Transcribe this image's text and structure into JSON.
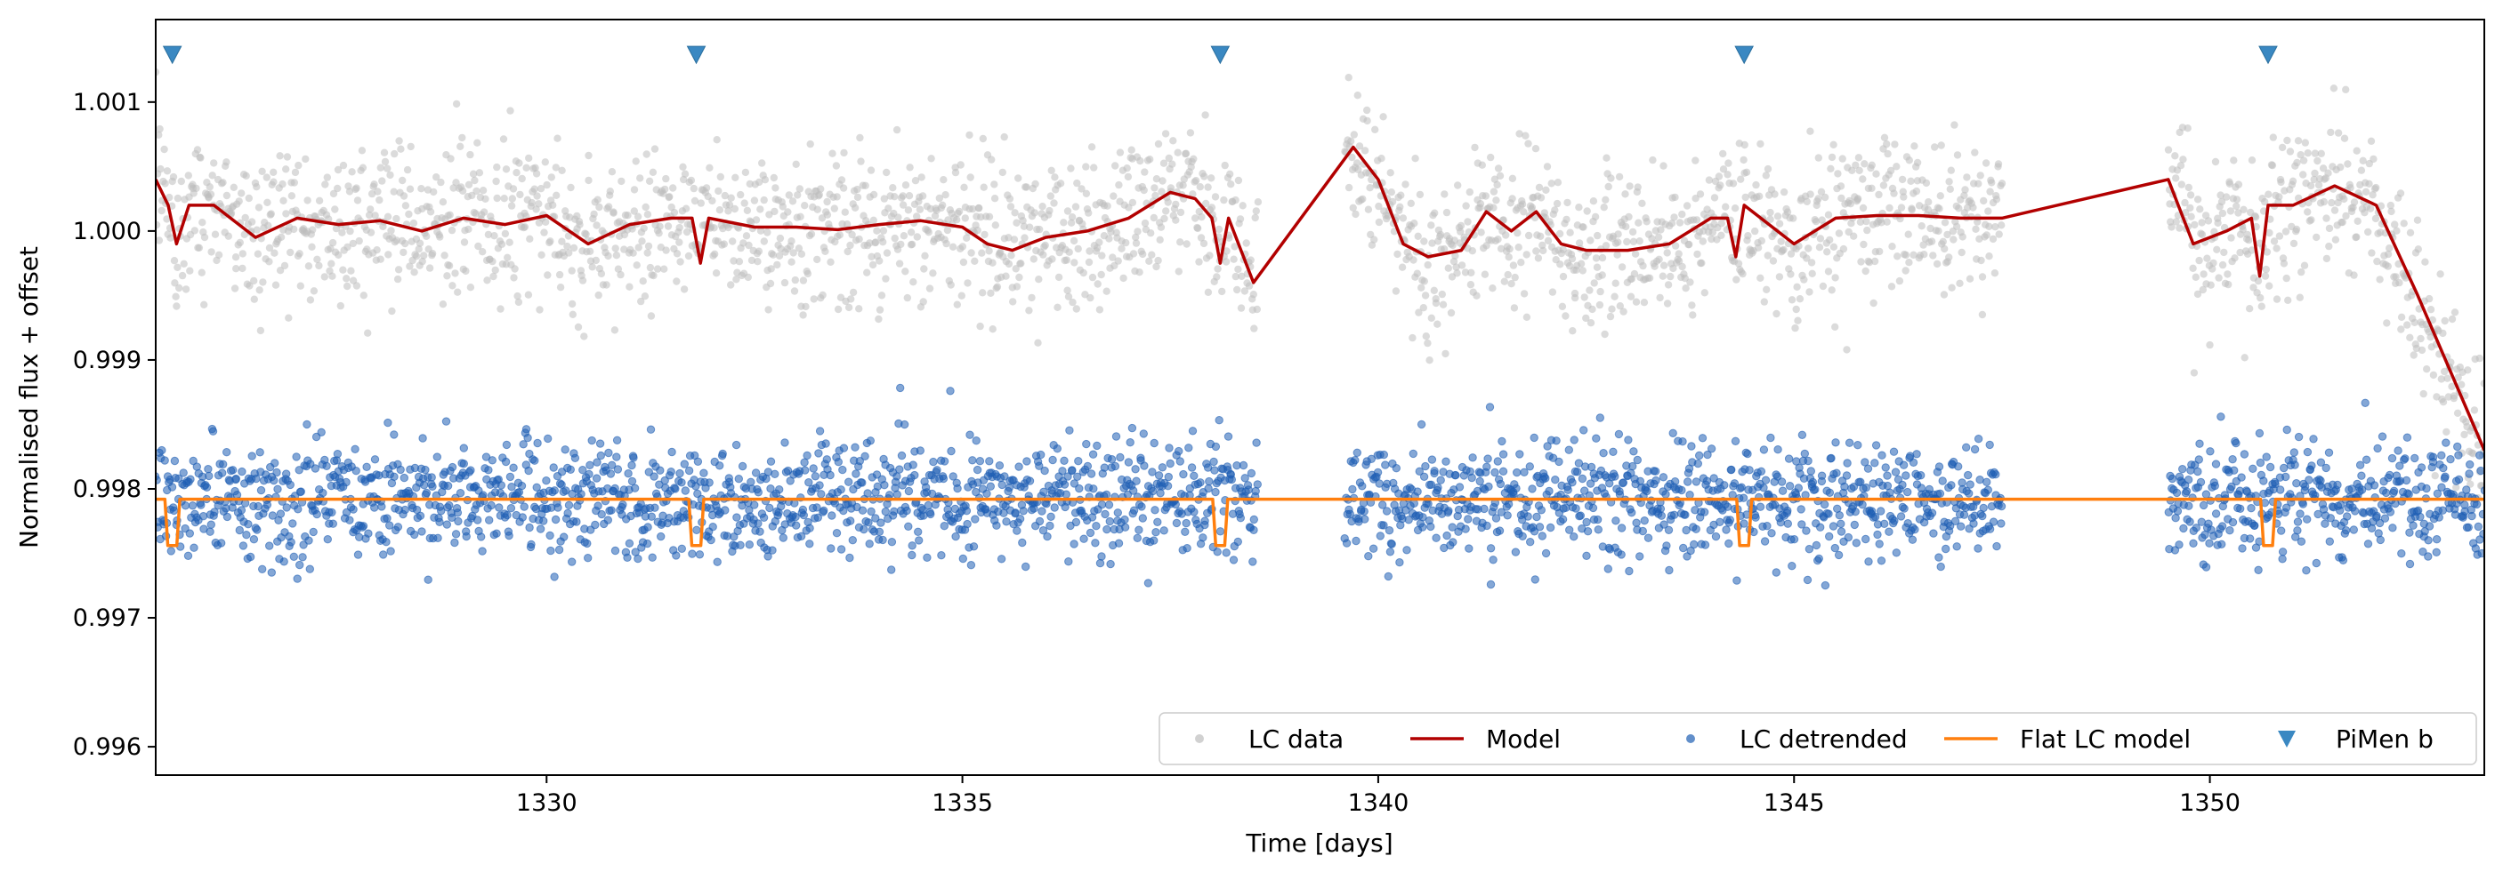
{
  "chart_data": {
    "type": "scatter",
    "xlabel": "Time [days]",
    "ylabel": "Normalised flux + offset",
    "xlim": [
      1325.3,
      1353.3
    ],
    "ylim": [
      0.99578,
      0.99164
    ],
    "x_ticks": [
      1330,
      1335,
      1340,
      1345,
      1350
    ],
    "x_tick_labels": [
      "1330",
      "1335",
      "1340",
      "1345",
      "1350"
    ],
    "y_ticks": [
      0.997,
      0.998,
      0.999,
      1.0,
      1.001
    ],
    "y_tick_labels": [
      "0.997",
      "0.998",
      "0.999",
      "1.000",
      "1.001"
    ],
    "y_axis_bottom_label": "0.996",
    "legend_position": "lower-right",
    "colors": {
      "lc_data": "#bdbdbd",
      "model": "#b20000",
      "lc_detrended": "#1f5fb4",
      "flat_model": "#ff7f0e",
      "transit_marker": "#3a88c2"
    },
    "segments": [
      [
        1325.3,
        1338.55
      ],
      [
        1339.6,
        1347.5
      ],
      [
        1349.5,
        1353.3
      ]
    ],
    "series": [
      {
        "name": "LC data",
        "kind": "scatter",
        "note_level": 1.0,
        "scatter_sigma": 0.0003
      },
      {
        "name": "Model",
        "kind": "line",
        "x": [
          1325.3,
          1325.45,
          1325.55,
          1325.7,
          1326.0,
          1326.5,
          1327.0,
          1327.5,
          1328.0,
          1328.5,
          1329.0,
          1329.5,
          1330.0,
          1330.5,
          1331.0,
          1331.5,
          1331.75,
          1331.85,
          1331.95,
          1332.5,
          1333.0,
          1333.5,
          1334.0,
          1334.5,
          1335.0,
          1335.3,
          1335.6,
          1336.0,
          1336.5,
          1337.0,
          1337.5,
          1337.8,
          1338.0,
          1338.1,
          1338.2,
          1338.5,
          1339.7,
          1340.0,
          1340.3,
          1340.6,
          1341.0,
          1341.3,
          1341.6,
          1341.9,
          1342.2,
          1342.5,
          1343.0,
          1343.5,
          1344.0,
          1344.2,
          1344.3,
          1344.4,
          1344.6,
          1345.0,
          1345.5,
          1346.0,
          1346.5,
          1347.0,
          1347.5,
          1349.5,
          1349.8,
          1350.2,
          1350.5,
          1350.6,
          1350.7,
          1351.0,
          1351.5,
          1352.0,
          1352.5,
          1353.0,
          1353.3
        ],
        "y": [
          1.0004,
          1.0002,
          0.9999,
          1.0002,
          1.0002,
          0.99995,
          1.0001,
          1.00005,
          1.00008,
          1.0,
          1.0001,
          1.00005,
          1.00012,
          0.9999,
          1.00005,
          1.0001,
          1.0001,
          0.99975,
          1.0001,
          1.00003,
          1.00003,
          1.00001,
          1.00005,
          1.00008,
          1.00003,
          0.9999,
          0.99985,
          0.99995,
          1.0,
          1.0001,
          1.0003,
          1.00025,
          1.0001,
          0.99975,
          1.0001,
          0.9996,
          1.00065,
          1.0004,
          0.9999,
          0.9998,
          0.99985,
          1.00015,
          1.0,
          1.00015,
          0.9999,
          0.99985,
          0.99985,
          0.9999,
          1.0001,
          1.0001,
          0.9998,
          1.0002,
          1.0001,
          0.9999,
          1.0001,
          1.00012,
          1.00012,
          1.0001,
          1.0001,
          1.0004,
          0.9999,
          1.0,
          1.0001,
          0.99965,
          1.0002,
          1.0002,
          1.00035,
          1.0002,
          0.9995,
          0.99875,
          0.9983
        ]
      },
      {
        "name": "LC detrended",
        "kind": "scatter",
        "note_level": 0.99792,
        "scatter_sigma": 0.00022
      },
      {
        "name": "Flat LC model",
        "kind": "line",
        "baseline": 0.99792,
        "transit_depth": 0.00036,
        "transit_width_days": 0.18
      },
      {
        "name": "PiMen b",
        "kind": "marker",
        "x": [
          1325.5,
          1331.8,
          1338.1,
          1344.4,
          1350.7
        ],
        "y_level": 1.00137
      }
    ]
  }
}
